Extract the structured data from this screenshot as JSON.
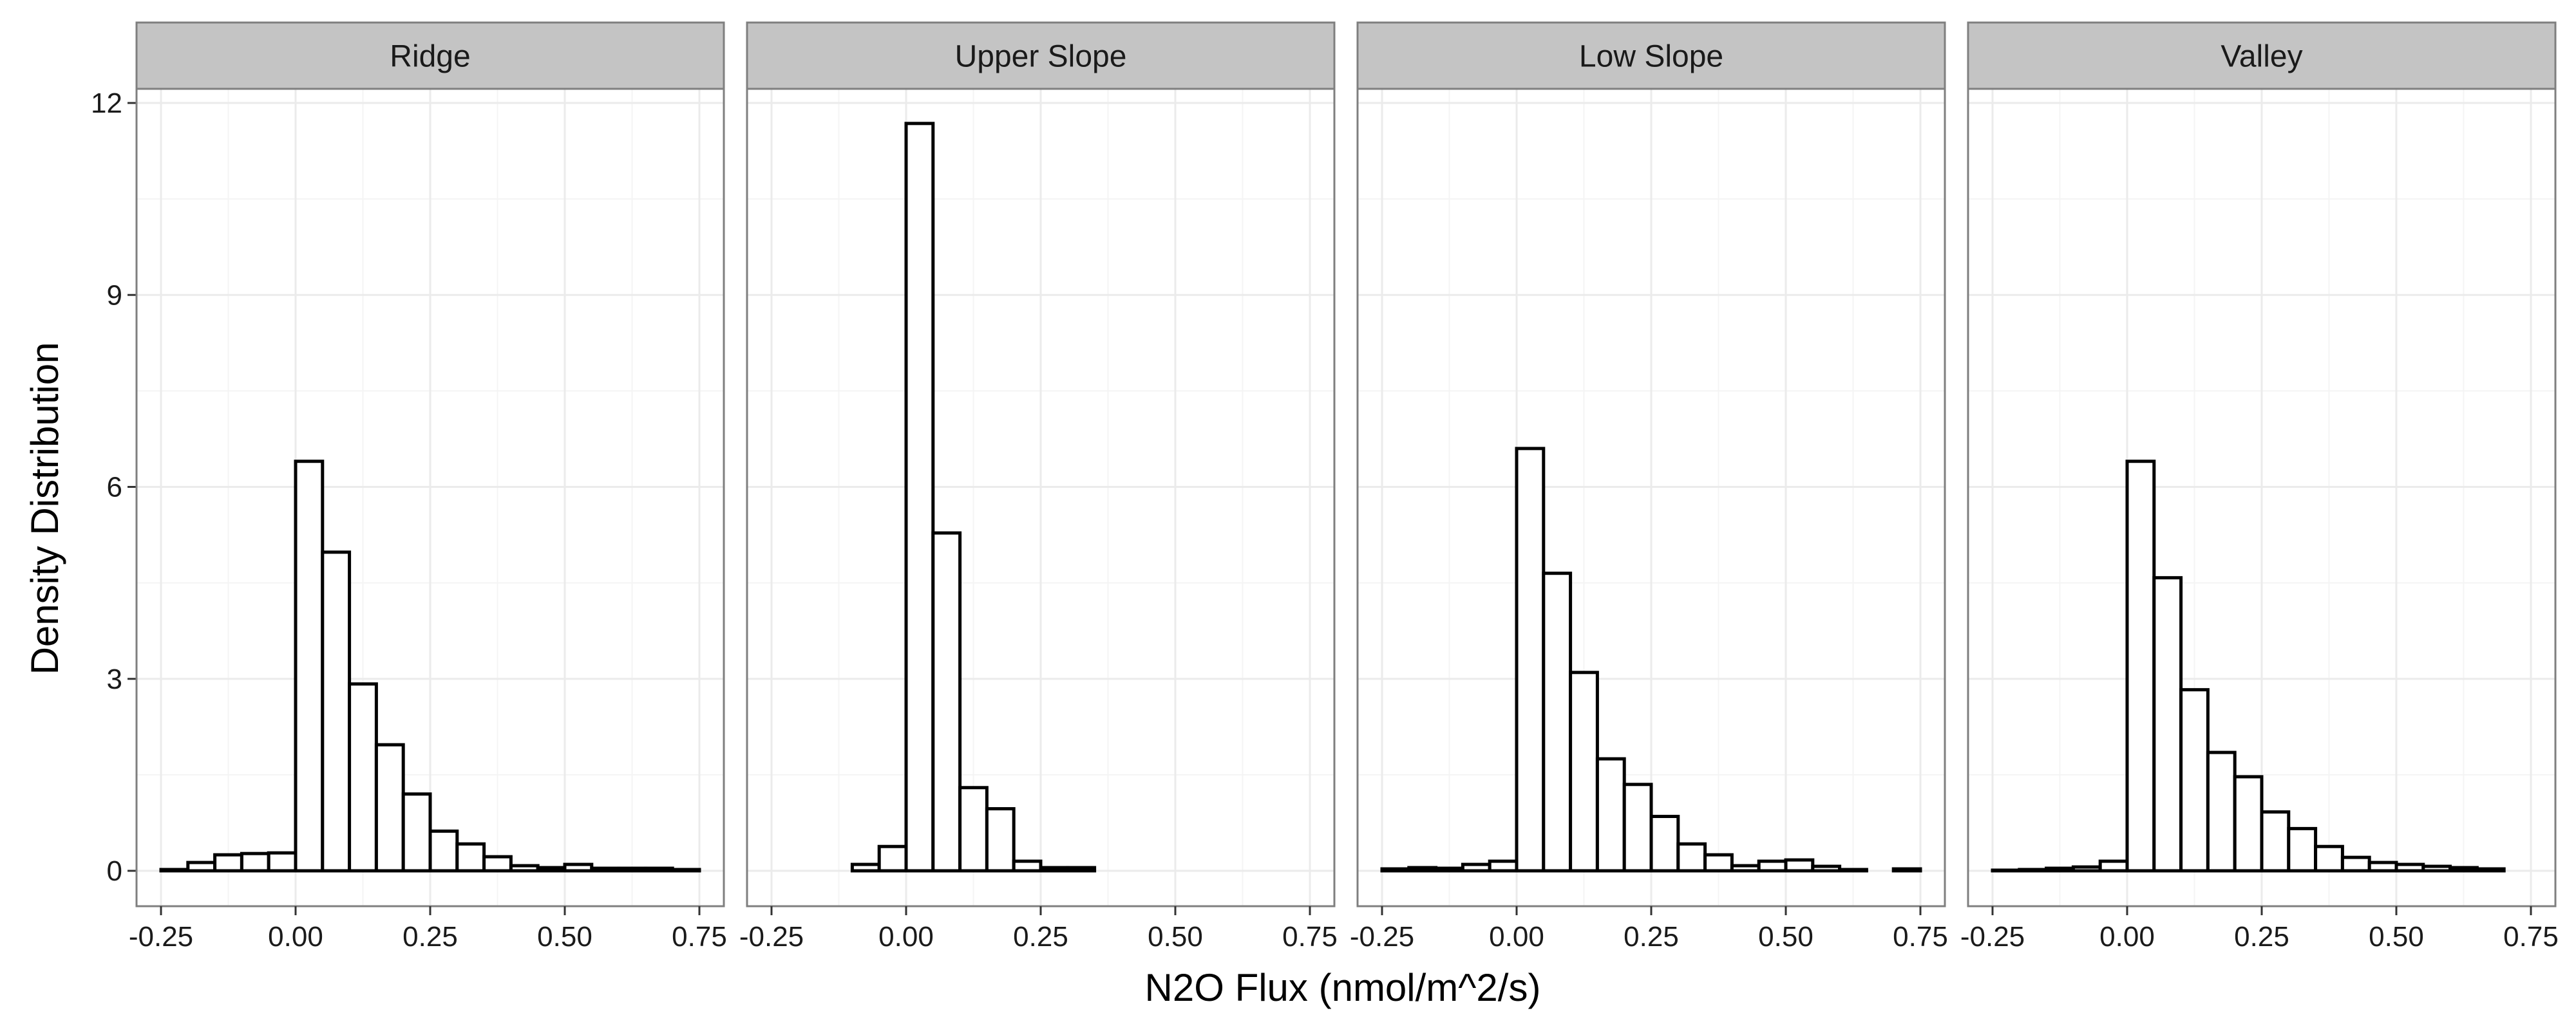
{
  "chart_data": {
    "type": "bar",
    "subtype": "faceted-histogram",
    "xlabel": "N2O Flux (nmol/m^2/s)",
    "ylabel": "Density Distribution",
    "xlim": [
      -0.25,
      0.75
    ],
    "ylim": [
      0,
      12
    ],
    "x_ticks": [
      "-0.25",
      "0.00",
      "0.25",
      "0.50",
      "0.75"
    ],
    "x_tick_values": [
      -0.25,
      0.0,
      0.25,
      0.5,
      0.75
    ],
    "y_ticks": [
      "0",
      "3",
      "6",
      "9",
      "12"
    ],
    "y_tick_values": [
      0,
      3,
      6,
      9,
      12
    ],
    "bin_width": 0.05,
    "bin_starts": [
      -0.25,
      -0.2,
      -0.15,
      -0.1,
      -0.05,
      0.0,
      0.05,
      0.1,
      0.15,
      0.2,
      0.25,
      0.3,
      0.35,
      0.4,
      0.45,
      0.5,
      0.55,
      0.6,
      0.65,
      0.7
    ],
    "grid": true,
    "colors": {
      "bar_fill": "#ffffff",
      "bar_stroke": "#000000",
      "strip_fill": "#c4c4c4",
      "panel_border": "#7f7f7f",
      "grid": "#ebebeb"
    },
    "facets": [
      {
        "label": "Ridge",
        "values": [
          0.02,
          0.13,
          0.25,
          0.27,
          0.28,
          6.4,
          4.98,
          2.92,
          1.97,
          1.2,
          0.62,
          0.42,
          0.22,
          0.08,
          0.05,
          0.1,
          0.04,
          0.04,
          0.04,
          0.02
        ]
      },
      {
        "label": "Upper Slope",
        "values": [
          0.0,
          0.0,
          0.0,
          0.1,
          0.38,
          11.68,
          5.28,
          1.3,
          0.97,
          0.15,
          0.05,
          0.05,
          0.0,
          0.0,
          0.0,
          0.0,
          0.0,
          0.0,
          0.0,
          0.0
        ]
      },
      {
        "label": "Low Slope",
        "values": [
          0.03,
          0.05,
          0.04,
          0.1,
          0.15,
          6.6,
          4.65,
          3.1,
          1.75,
          1.35,
          0.85,
          0.42,
          0.25,
          0.08,
          0.15,
          0.17,
          0.07,
          0.02,
          0.0,
          0.03
        ]
      },
      {
        "label": "Valley",
        "values": [
          0.01,
          0.02,
          0.04,
          0.06,
          0.15,
          6.4,
          4.58,
          2.83,
          1.85,
          1.47,
          0.92,
          0.66,
          0.38,
          0.21,
          0.13,
          0.1,
          0.07,
          0.05,
          0.03,
          0.0
        ]
      }
    ]
  }
}
